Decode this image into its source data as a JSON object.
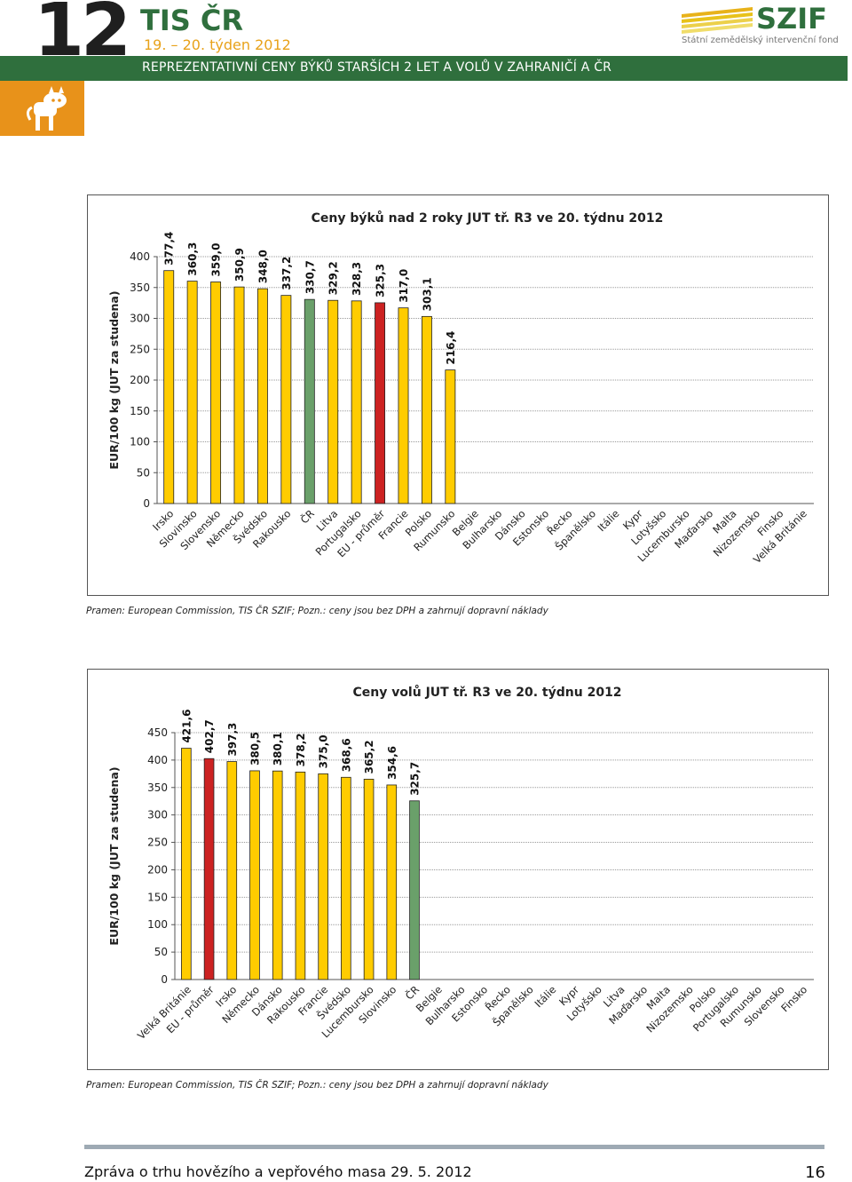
{
  "header": {
    "issue_number": "12",
    "app_title": "TIS ČR",
    "week": "19. – 20. týden  2012",
    "banner": "REPREZENTATIVNÍ  CENY  BÝKŮ  STARŠÍCH  2  LET  A  VOLŮ    V  ZAHRANIČÍ    A   ČR",
    "logo_text": "SZIF",
    "logo_subtitle": "Státní zemědělský intervenční fond"
  },
  "colors": {
    "bar_default": "#ffcc00",
    "bar_eu": "#cc2222",
    "bar_cr": "#6aa06a",
    "header_green": "#2f6f3d",
    "accent_orange": "#e8921a"
  },
  "sources": {
    "chart1": "Pramen: European Commission, TIS ČR SZIF; Pozn.:  ceny jsou bez DPH a zahrnují dopravní náklady",
    "chart2": "Pramen: European Commission, TIS ČR SZIF; Pozn.:  ceny jsou bez DPH a zahrnují dopravní náklady"
  },
  "footer": {
    "text": "Zpráva o trhu hovězího a vepřového masa  29. 5. 2012",
    "page": "16"
  },
  "chart_data": [
    {
      "type": "bar",
      "title": "Ceny býků nad 2 roky JUT  tř. R3   ve 20. týdnu 2012",
      "ylabel": "EUR/100 kg (JUT za studena)",
      "ylim": [
        0,
        400
      ],
      "yticks": [
        "0",
        "50",
        "100",
        "150",
        "200",
        "250",
        "300",
        "350",
        "400"
      ],
      "grid": true,
      "categories": [
        "Irsko",
        "Slovinsko",
        "Slovensko",
        "Německo",
        "Švédsko",
        "Rakousko",
        "ČR",
        "Litva",
        "Portugalsko",
        "EU - průměr",
        "Francie",
        "Polsko",
        "Rumunsko",
        "Belgie",
        "Bulharsko",
        "Dánsko",
        "Estonsko",
        "Řecko",
        "Španělsko",
        "Itálie",
        "Kypr",
        "Lotyšsko",
        "Lucembursko",
        "Maďarsko",
        "Malta",
        "Nizozemsko",
        "Finsko",
        "Velká Británie"
      ],
      "values": [
        377.4,
        360.3,
        359.0,
        350.9,
        348.0,
        337.2,
        330.7,
        329.2,
        328.3,
        325.3,
        317.0,
        303.1,
        216.4,
        null,
        null,
        null,
        null,
        null,
        null,
        null,
        null,
        null,
        null,
        null,
        null,
        null,
        null,
        null
      ],
      "labels": [
        "377,4",
        "360,3",
        "359,0",
        "350,9",
        "348,0",
        "337,2",
        "330,7",
        "329,2",
        "328,3",
        "325,3",
        "317,0",
        "303,1",
        "216,4",
        "",
        "",
        "",
        "",
        "",
        "",
        "",
        "",
        "",
        "",
        "",
        "",
        "",
        "",
        ""
      ],
      "bar_types": [
        "default",
        "default",
        "default",
        "default",
        "default",
        "default",
        "cr",
        "default",
        "default",
        "eu",
        "default",
        "default",
        "default",
        "default",
        "default",
        "default",
        "default",
        "default",
        "default",
        "default",
        "default",
        "default",
        "default",
        "default",
        "default",
        "default",
        "default",
        "default"
      ]
    },
    {
      "type": "bar",
      "title": "Ceny volů JUT  tř. R3   ve 20. týdnu 2012",
      "ylabel": "EUR/100 kg (JUT za studena)",
      "ylim": [
        0,
        450
      ],
      "yticks": [
        "0",
        "50",
        "100",
        "150",
        "200",
        "250",
        "300",
        "350",
        "400",
        "450"
      ],
      "grid": true,
      "categories": [
        "Velká Británie",
        "EU - průměr",
        "Irsko",
        "Německo",
        "Dánsko",
        "Rakousko",
        "Francie",
        "Švédsko",
        "Lucembursko",
        "Slovinsko",
        "ČR",
        "Belgie",
        "Bulharsko",
        "Estonsko",
        "Řecko",
        "Španělsko",
        "Itálie",
        "Kypr",
        "Lotyšsko",
        "Litva",
        "Maďarsko",
        "Malta",
        "Nizozemsko",
        "Polsko",
        "Portugalsko",
        "Rumunsko",
        "Slovensko",
        "Finsko"
      ],
      "values": [
        421.6,
        402.7,
        397.3,
        380.5,
        380.1,
        378.2,
        375.0,
        368.6,
        365.2,
        354.6,
        325.7,
        null,
        null,
        null,
        null,
        null,
        null,
        null,
        null,
        null,
        null,
        null,
        null,
        null,
        null,
        null,
        null,
        null
      ],
      "labels": [
        "421,6",
        "402,7",
        "397,3",
        "380,5",
        "380,1",
        "378,2",
        "375,0",
        "368,6",
        "365,2",
        "354,6",
        "325,7",
        "",
        "",
        "",
        "",
        "",
        "",
        "",
        "",
        "",
        "",
        "",
        "",
        "",
        "",
        "",
        "",
        ""
      ],
      "bar_types": [
        "default",
        "eu",
        "default",
        "default",
        "default",
        "default",
        "default",
        "default",
        "default",
        "default",
        "cr",
        "default",
        "default",
        "default",
        "default",
        "default",
        "default",
        "default",
        "default",
        "default",
        "default",
        "default",
        "default",
        "default",
        "default",
        "default",
        "default",
        "default"
      ]
    }
  ]
}
